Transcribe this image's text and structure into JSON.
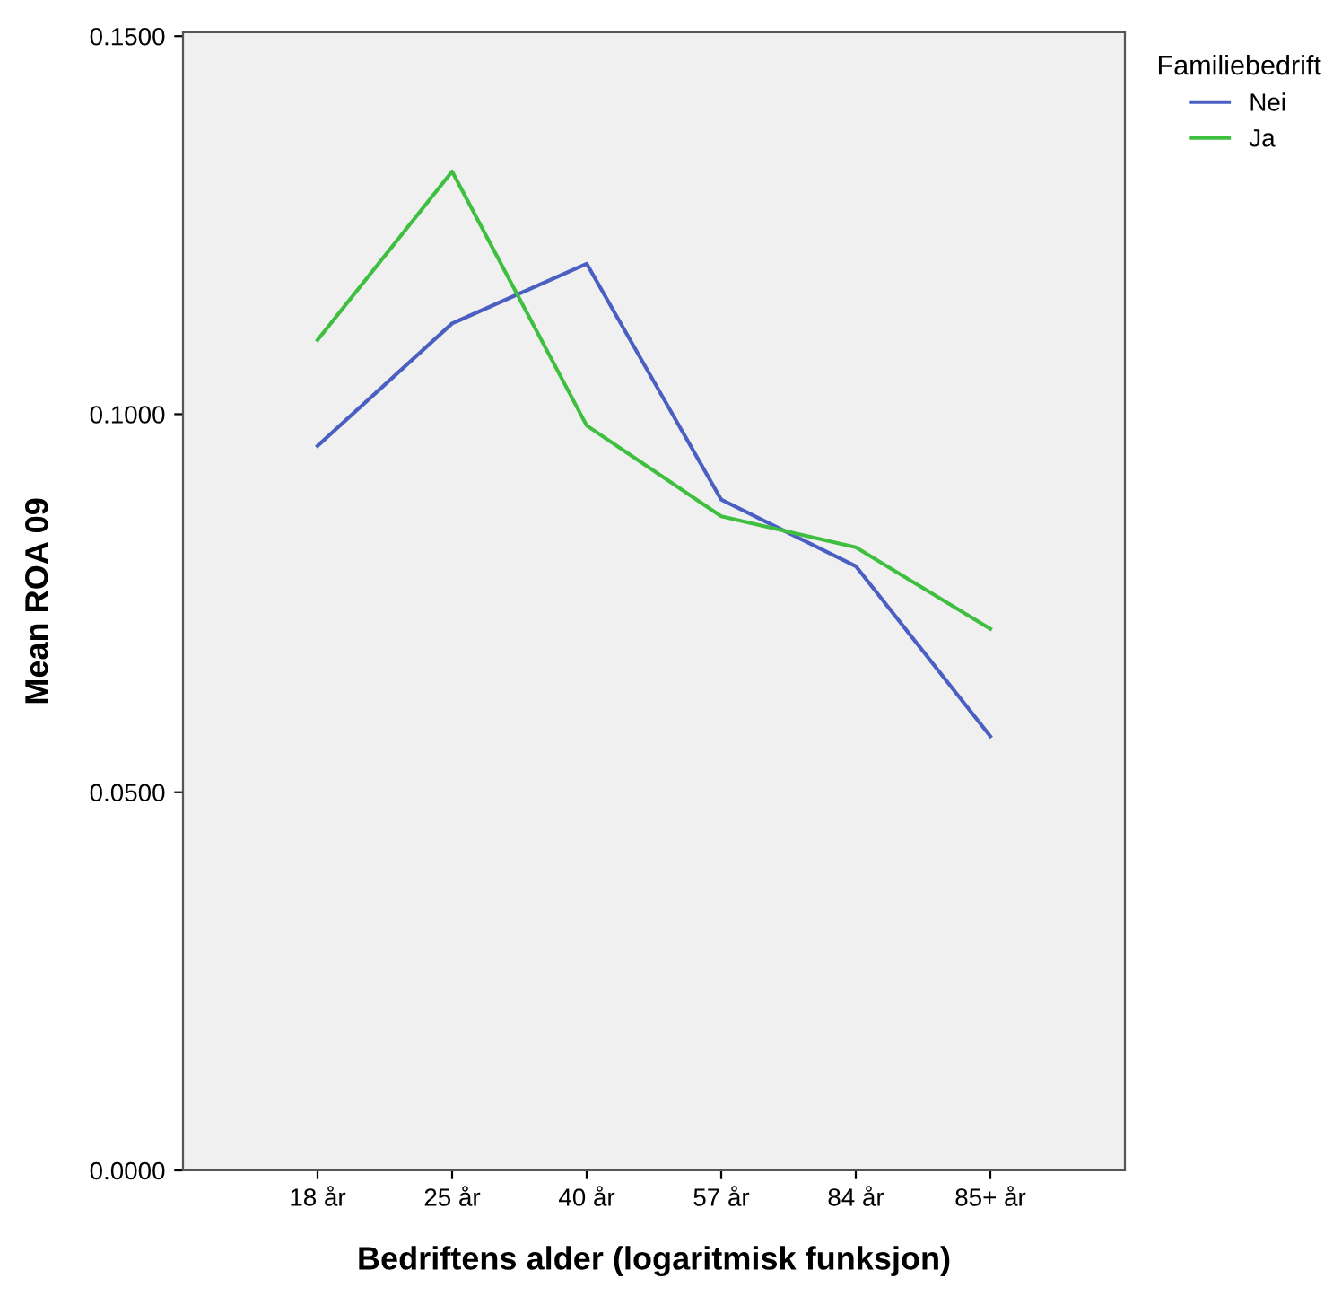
{
  "chart_data": {
    "type": "line",
    "xlabel": "Bedriftens alder (logaritmisk funksjon)",
    "ylabel": "Mean ROA 09",
    "legend_title": "Familiebedrift",
    "legend": "top right",
    "categories": [
      "18 år",
      "25 år",
      "40 år",
      "57 år",
      "84 år",
      "85+ år"
    ],
    "series": [
      {
        "name": "Nei",
        "color": "#4a5fc1",
        "values": [
          0.0958,
          0.112,
          0.1199,
          0.0887,
          0.0799,
          0.0574
        ]
      },
      {
        "name": "Ja",
        "color": "#3fbf3f",
        "values": [
          0.1098,
          0.1321,
          0.0985,
          0.0865,
          0.0824,
          0.0716
        ]
      }
    ],
    "ylim": [
      0,
      0.1505
    ],
    "yticks": [
      {
        "value": 0,
        "label": "0.0000"
      },
      {
        "value": 0.05,
        "label": "0.0500"
      },
      {
        "value": 0.1,
        "label": "0.1000"
      },
      {
        "value": 0.15,
        "label": "0.1500"
      }
    ],
    "grid": false
  }
}
